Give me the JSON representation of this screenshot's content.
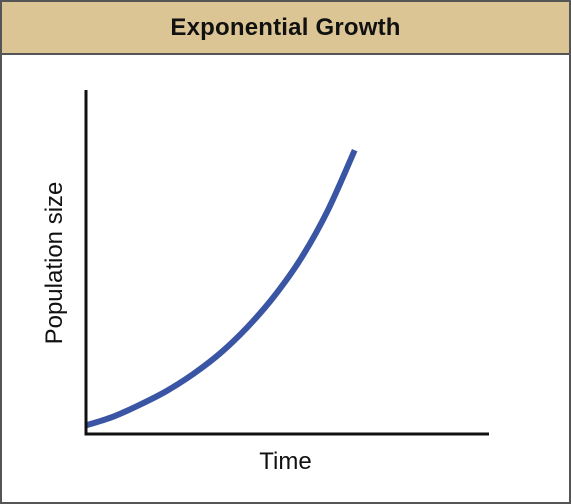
{
  "chart_data": {
    "type": "line",
    "title": "Exponential Growth",
    "xlabel": "Time",
    "ylabel": "Population size",
    "x": [
      0,
      1,
      2,
      3,
      4,
      5,
      6,
      7,
      8,
      9,
      10
    ],
    "series": [
      {
        "values": [
          0.05,
          0.1,
          0.17,
          0.25,
          0.35,
          0.47,
          0.62,
          0.8,
          1.02,
          1.3,
          1.65
        ]
      }
    ],
    "ylim": [
      0,
      2
    ],
    "xlim": [
      0,
      15
    ],
    "grid": false,
    "ticks": false,
    "colors": {
      "line": "#3a55a4",
      "axes": "#111111",
      "title_bar": "#dcc594",
      "border": "#555555"
    }
  }
}
